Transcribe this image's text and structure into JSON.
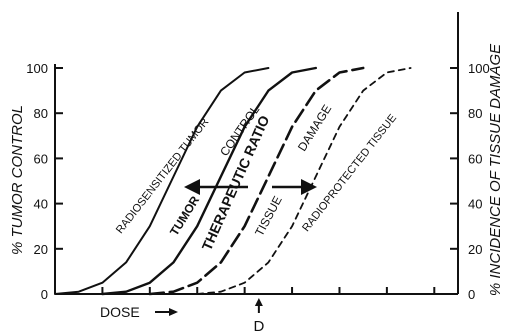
{
  "chart_data": {
    "type": "line",
    "xlabel": "DOSE",
    "ylabel_left": "% TUMOR CONTROL",
    "ylabel_right": "% INCIDENCE OF TISSUE DAMAGE",
    "yticks": [
      "0",
      "20",
      "40",
      "60",
      "80",
      "100"
    ],
    "ylim": [
      0,
      100
    ],
    "xlim": [
      0,
      17
    ],
    "x_ticks": [
      2,
      4,
      6,
      8,
      10,
      12,
      14,
      16
    ],
    "marker": {
      "label": "D",
      "x": 8.6
    },
    "grid": false,
    "legend": "none",
    "series": [
      {
        "name": "RADIOSENSITIZED TUMOR",
        "style": "solid",
        "x": [
          0,
          1,
          2,
          3,
          4,
          5,
          6,
          7,
          8,
          9
        ],
        "y": [
          0,
          1,
          5,
          14,
          30,
          52,
          74,
          90,
          98,
          100
        ]
      },
      {
        "name": "TUMOR CONTROL",
        "style": "solid",
        "x": [
          2,
          3,
          4,
          5,
          6,
          7,
          8,
          9,
          10,
          11
        ],
        "y": [
          0,
          1,
          5,
          14,
          30,
          52,
          74,
          90,
          98,
          100
        ]
      },
      {
        "name": "TISSUE DAMAGE",
        "style": "long-dash",
        "x": [
          4,
          5,
          6,
          7,
          8,
          9,
          10,
          11,
          12,
          13
        ],
        "y": [
          0,
          1,
          5,
          14,
          30,
          52,
          74,
          90,
          98,
          100
        ]
      },
      {
        "name": "RADIOPROTECTED TISSUE",
        "style": "short-dash",
        "x": [
          6,
          7,
          8,
          9,
          10,
          11,
          12,
          13,
          14,
          15
        ],
        "y": [
          0,
          1,
          5,
          14,
          30,
          52,
          74,
          90,
          98,
          100
        ]
      }
    ],
    "annotations": {
      "therapeutic_ratio": "THERAPEUTIC RATIO",
      "arrow_label": "DOSE"
    }
  }
}
